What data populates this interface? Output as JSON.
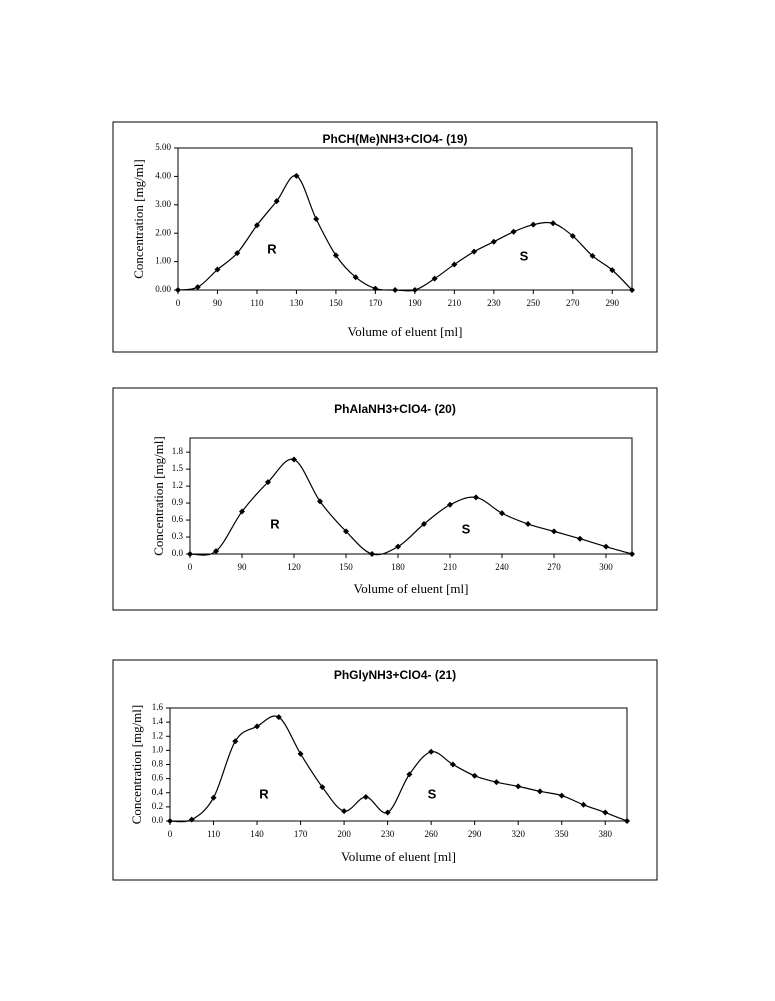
{
  "chart_data": [
    {
      "type": "line",
      "title": "PhCH(Me)NH3+ClO4- (19)",
      "xlabel": "Volume of eluent [ml]",
      "ylabel": "Concentration [mg/ml]",
      "color": "#000000",
      "x": [
        70,
        80,
        90,
        100,
        110,
        120,
        130,
        140,
        150,
        160,
        170,
        180,
        190,
        200,
        210,
        220,
        230,
        240,
        250,
        260,
        270,
        280,
        290,
        300
      ],
      "values": [
        0,
        0.1,
        0.72,
        1.3,
        2.28,
        3.13,
        4.02,
        2.5,
        1.22,
        0.45,
        0.05,
        0,
        0,
        0.4,
        0.9,
        1.35,
        1.7,
        2.05,
        2.3,
        2.35,
        1.9,
        1.2,
        0.7,
        0
      ],
      "xlim": [
        70,
        300
      ],
      "ylim": [
        0,
        5
      ],
      "xticks": [
        {
          "value": 70,
          "label": "0"
        },
        90,
        110,
        130,
        150,
        170,
        190,
        210,
        230,
        250,
        270,
        290
      ],
      "yticks": [
        {
          "value": 0,
          "label": "0.00"
        },
        {
          "value": 1,
          "label": "1.00"
        },
        {
          "value": 2,
          "label": "2.00"
        },
        {
          "value": 3,
          "label": "3.00"
        },
        {
          "value": 4,
          "label": "4.00"
        },
        {
          "value": 5,
          "label": "5.00"
        }
      ],
      "annotations": [
        "R",
        "S"
      ]
    },
    {
      "type": "line",
      "title": "PhAlaNH3+ClO4- (20)",
      "xlabel": "Volume of eluent [ml]",
      "ylabel": "Concentration [mg/ml]",
      "color": "#000000",
      "x": [
        60,
        75,
        90,
        105,
        120,
        135,
        150,
        165,
        180,
        195,
        210,
        225,
        240,
        255,
        270,
        285,
        300,
        315
      ],
      "values": [
        0,
        0.05,
        0.75,
        1.27,
        1.67,
        0.93,
        0.4,
        0,
        0.13,
        0.53,
        0.87,
        1.0,
        0.72,
        0.53,
        0.4,
        0.27,
        0.13,
        0
      ],
      "xlim": [
        60,
        315
      ],
      "ylim": [
        0,
        2.05
      ],
      "xticks": [
        {
          "value": 60,
          "label": "0"
        },
        90,
        120,
        150,
        180,
        210,
        240,
        270,
        300
      ],
      "yticks": [
        {
          "value": 0,
          "label": "0.0"
        },
        0.3,
        0.6,
        0.9,
        1.2,
        1.5,
        1.8
      ],
      "annotations": [
        "R",
        "S"
      ]
    },
    {
      "type": "line",
      "title": "PhGlyNH3+ClO4- (21)",
      "xlabel": "Volume of eluent [ml]",
      "ylabel": "Concentration [mg/ml]",
      "color": "#000000",
      "x": [
        80,
        95,
        110,
        125,
        140,
        155,
        170,
        185,
        200,
        215,
        230,
        245,
        260,
        275,
        290,
        305,
        320,
        335,
        350,
        365,
        380,
        395
      ],
      "values": [
        0,
        0.02,
        0.33,
        1.13,
        1.34,
        1.47,
        0.95,
        0.48,
        0.14,
        0.34,
        0.12,
        0.66,
        0.98,
        0.8,
        0.64,
        0.55,
        0.49,
        0.42,
        0.36,
        0.23,
        0.12,
        0
      ],
      "xlim": [
        80,
        395
      ],
      "ylim": [
        0,
        1.6
      ],
      "xticks": [
        {
          "value": 80,
          "label": "0"
        },
        110,
        140,
        170,
        200,
        230,
        260,
        290,
        320,
        350,
        380
      ],
      "yticks": [
        {
          "value": 0,
          "label": "0.0"
        },
        0.2,
        0.4,
        0.6,
        {
          "value": 0.8,
          "label": "0.8"
        },
        {
          "value": 1,
          "label": "1.0"
        },
        1.2,
        1.4,
        1.6
      ],
      "annotations": [
        "R",
        "S"
      ]
    }
  ]
}
